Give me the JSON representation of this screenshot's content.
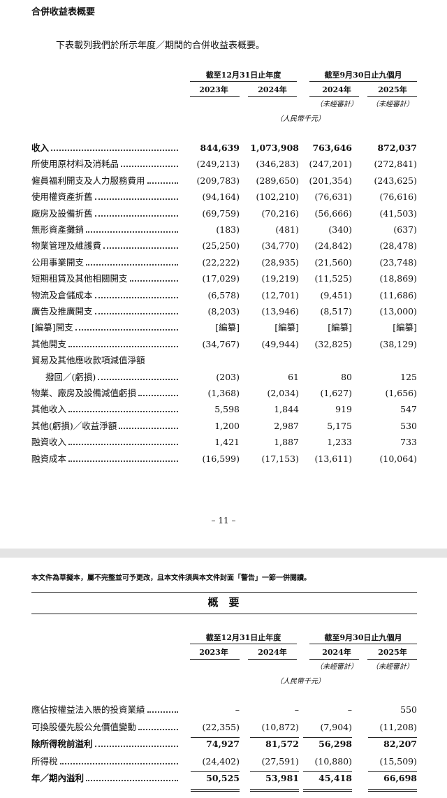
{
  "page1": {
    "title": "合併收益表概要",
    "intro": "下表載列我們於所示年度／期間的合併收益表概要。",
    "header": {
      "groups": [
        "截至12月31日止年度",
        "截至9月30日止九個月"
      ],
      "years": [
        "2023年",
        "2024年",
        "2024年",
        "2025年"
      ],
      "audit": [
        "（未經審計）",
        "（未經審計）"
      ],
      "unit": "（人民幣千元）"
    },
    "rows": [
      {
        "label": "收入",
        "values": [
          "844,639",
          "1,073,908",
          "763,646",
          "872,037"
        ],
        "bold": true
      },
      {
        "label": "所使用原材料及消耗品",
        "values": [
          "(249,213)",
          "(346,283)",
          "(247,201)",
          "(272,841)"
        ]
      },
      {
        "label": "僱員福利開支及人力服務費用",
        "values": [
          "(209,783)",
          "(289,650)",
          "(201,354)",
          "(243,625)"
        ]
      },
      {
        "label": "使用權資產折舊",
        "values": [
          "(94,164)",
          "(102,210)",
          "(76,631)",
          "(76,616)"
        ]
      },
      {
        "label": "廠房及設備折舊",
        "values": [
          "(69,759)",
          "(70,216)",
          "(56,666)",
          "(41,503)"
        ]
      },
      {
        "label": "無形資產攤銷",
        "values": [
          "(183)",
          "(481)",
          "(340)",
          "(637)"
        ]
      },
      {
        "label": "物業管理及維護費",
        "values": [
          "(25,250)",
          "(34,770)",
          "(24,842)",
          "(28,478)"
        ]
      },
      {
        "label": "公用事業開支",
        "values": [
          "(22,222)",
          "(28,935)",
          "(21,560)",
          "(23,748)"
        ]
      },
      {
        "label": "短期租賃及其他相關開支",
        "values": [
          "(17,029)",
          "(19,219)",
          "(11,525)",
          "(18,869)"
        ]
      },
      {
        "label": "物流及倉儲成本",
        "values": [
          "(6,578)",
          "(12,701)",
          "(9,451)",
          "(11,686)"
        ]
      },
      {
        "label": "廣告及推廣開支",
        "values": [
          "(8,203)",
          "(13,946)",
          "(8,517)",
          "(13,000)"
        ]
      },
      {
        "label": "[編纂]開支",
        "values": [
          "[編纂]",
          "[編纂]",
          "[編纂]",
          "[編纂]"
        ]
      },
      {
        "label": "其他開支",
        "values": [
          "(34,767)",
          "(49,944)",
          "(32,825)",
          "(38,129)"
        ]
      },
      {
        "label": [
          "貿易及其他應收款項減值淨額",
          "撥回／(虧損)"
        ],
        "values": [
          "(203)",
          "61",
          "80",
          "125"
        ]
      },
      {
        "label": "物業、廠房及設備減值虧損",
        "values": [
          "(1,368)",
          "(2,034)",
          "(1,627)",
          "(1,656)"
        ]
      },
      {
        "label": "其他收入",
        "values": [
          "5,598",
          "1,844",
          "919",
          "547"
        ]
      },
      {
        "label": "其他(虧損)／收益淨額",
        "values": [
          "1,200",
          "2,987",
          "5,175",
          "530"
        ]
      },
      {
        "label": "融資收入",
        "values": [
          "1,421",
          "1,887",
          "1,233",
          "733"
        ]
      },
      {
        "label": "融資成本",
        "values": [
          "(16,599)",
          "(17,153)",
          "(13,611)",
          "(10,064)"
        ]
      }
    ],
    "page_number": "– 11 –"
  },
  "page2": {
    "note": "本文件為草擬本，屬不完整並可予更改，且本文件須與本文件封面「警告」一節一併閱讀。",
    "section": "概　要",
    "header": {
      "groups": [
        "截至12月31日止年度",
        "截至9月30日止九個月"
      ],
      "years": [
        "2023年",
        "2024年",
        "2024年",
        "2025年"
      ],
      "audit": [
        "（未經審計）",
        "（未經審計）"
      ],
      "unit": "（人民幣千元）"
    },
    "rows": [
      {
        "label": "應佔按權益法入賬的投資業績",
        "values": [
          "–",
          "–",
          "–",
          "550"
        ]
      },
      {
        "label": "可換股優先股公允價值變動",
        "values": [
          "(22,355)",
          "(10,872)",
          "(7,904)",
          "(11,208)"
        ]
      },
      {
        "label": "除所得稅前溢利",
        "values": [
          "74,927",
          "81,572",
          "56,298",
          "82,207"
        ],
        "bold": true
      },
      {
        "label": "所得稅",
        "values": [
          "(24,402)",
          "(27,591)",
          "(10,880)",
          "(15,509)"
        ]
      },
      {
        "label": "年／期內溢利",
        "values": [
          "50,525",
          "53,981",
          "45,418",
          "66,698"
        ],
        "bold": true
      }
    ]
  }
}
